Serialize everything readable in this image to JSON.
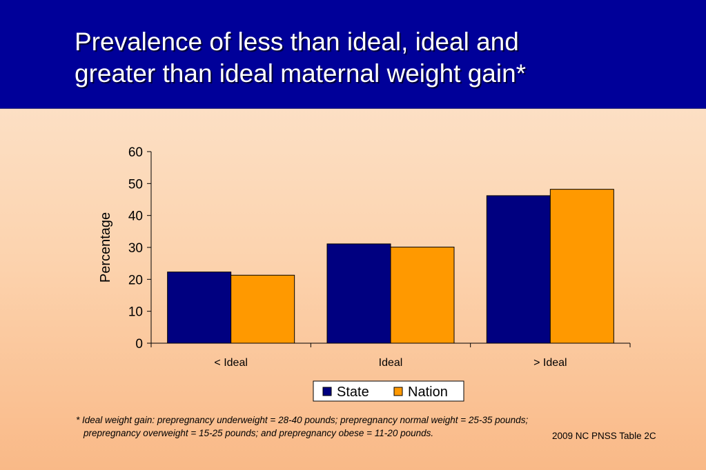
{
  "header": {
    "title": "Prevalence of less than ideal, ideal and\ngreater than ideal maternal weight gain*"
  },
  "colors": {
    "header_bg": "#000099",
    "state": "#000080",
    "nation": "#ff9900"
  },
  "chart_data": {
    "type": "bar",
    "title": "",
    "xlabel": "",
    "ylabel": "Percentage",
    "ylim": [
      0,
      60
    ],
    "yticks": [
      "0",
      "10",
      "20",
      "30",
      "40",
      "50",
      "60"
    ],
    "categories": [
      "< Ideal",
      "Ideal",
      "> Ideal"
    ],
    "series": [
      {
        "name": "State",
        "values": [
          22.3,
          31.1,
          46.2
        ]
      },
      {
        "name": "Nation",
        "values": [
          21.3,
          30.1,
          48.2
        ]
      }
    ],
    "legend_position": "bottom-center",
    "grid": false
  },
  "footnote": {
    "line1": "*  Ideal weight gain: prepregnancy underweight = 28-40 pounds; prepregnancy normal weight = 25-35 pounds;",
    "line2": "prepregnancy overweight = 15-25 pounds; and prepregnancy obese = 11-20 pounds."
  },
  "source": "2009 NC PNSS Table 2C"
}
